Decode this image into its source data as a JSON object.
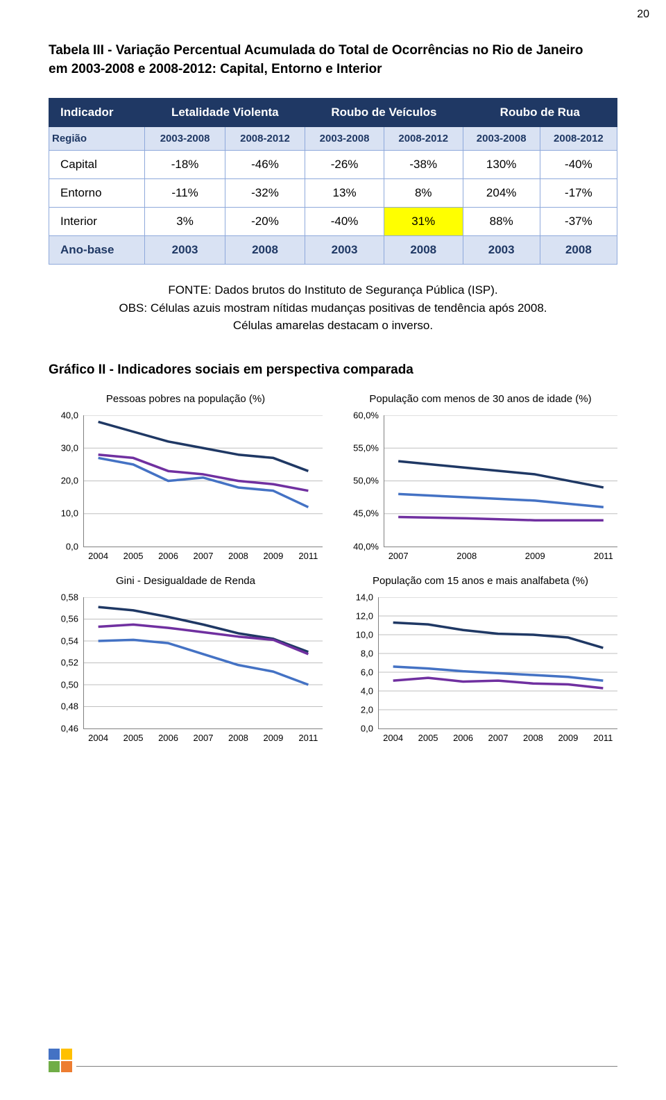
{
  "page_number": "20",
  "title_line1": "Tabela III - Variação Percentual Acumulada do Total de Ocorrências no Rio de Janeiro",
  "title_line2": "em 2003-2008 e 2008-2012: Capital, Entorno e Interior",
  "table": {
    "header_groups": [
      "Indicador",
      "Letalidade Violenta",
      "Roubo de Veículos",
      "Roubo de Rua"
    ],
    "region_label": "Região",
    "periods": [
      "2003-2008",
      "2008-2012",
      "2003-2008",
      "2008-2012",
      "2003-2008",
      "2008-2012"
    ],
    "rows": [
      {
        "label": "Capital",
        "cells": [
          "-18%",
          "-46%",
          "-26%",
          "-38%",
          "130%",
          "-40%"
        ],
        "hl": [
          false,
          false,
          false,
          false,
          false,
          false
        ]
      },
      {
        "label": "Entorno",
        "cells": [
          "-11%",
          "-32%",
          "13%",
          "8%",
          "204%",
          "-17%"
        ],
        "hl": [
          false,
          false,
          false,
          false,
          false,
          false
        ]
      },
      {
        "label": "Interior",
        "cells": [
          "3%",
          "-20%",
          "-40%",
          "31%",
          "88%",
          "-37%"
        ],
        "hl": [
          false,
          false,
          false,
          true,
          false,
          false
        ]
      }
    ],
    "base": {
      "label": "Ano-base",
      "cells": [
        "2003",
        "2008",
        "2003",
        "2008",
        "2003",
        "2008"
      ]
    }
  },
  "caption": {
    "l1": "FONTE: Dados brutos do Instituto de Segurança Pública (ISP).",
    "l2": "OBS: Células azuis mostram nítidas mudanças positivas de tendência após 2008.",
    "l3": "Células amarelas destacam o inverso."
  },
  "section": "Gráfico II - Indicadores sociais em perspectiva comparada",
  "colors": {
    "s1": "#1f3864",
    "s2": "#4472c4",
    "s3": "#7030a0",
    "grid": "#bfbfbf"
  },
  "charts": {
    "poverty": {
      "title": "Pessoas pobres na população (%)",
      "ylim": [
        0,
        40
      ],
      "yticks": [
        0,
        10,
        20,
        30,
        40
      ],
      "ytick_labels": [
        "0,0",
        "10,0",
        "20,0",
        "30,0",
        "40,0"
      ],
      "xlabels": [
        "2004",
        "2005",
        "2006",
        "2007",
        "2008",
        "2009",
        "2011"
      ],
      "series": [
        {
          "color": "s1",
          "v": [
            38,
            35,
            32,
            30,
            28,
            27,
            23
          ]
        },
        {
          "color": "s2",
          "v": [
            27,
            25,
            20,
            21,
            18,
            17,
            12
          ]
        },
        {
          "color": "s3",
          "v": [
            28,
            27,
            23,
            22,
            20,
            19,
            17
          ]
        }
      ]
    },
    "age30": {
      "title": "População com menos de 30 anos de idade (%)",
      "ylim": [
        40,
        60
      ],
      "yticks": [
        40,
        45,
        50,
        55,
        60
      ],
      "ytick_labels": [
        "40,0%",
        "45,0%",
        "50,0%",
        "55,0%",
        "60,0%"
      ],
      "xlabels": [
        "2007",
        "2008",
        "2009",
        "2011"
      ],
      "series": [
        {
          "color": "s1",
          "v": [
            53,
            52,
            51,
            49
          ]
        },
        {
          "color": "s2",
          "v": [
            48,
            47.5,
            47,
            46
          ]
        },
        {
          "color": "s3",
          "v": [
            44.5,
            44.3,
            44,
            44
          ]
        }
      ]
    },
    "gini": {
      "title": "Gini - Desigualdade de Renda",
      "ylim": [
        0.46,
        0.58
      ],
      "yticks": [
        0.46,
        0.48,
        0.5,
        0.52,
        0.54,
        0.56,
        0.58
      ],
      "ytick_labels": [
        "0,46",
        "0,48",
        "0,50",
        "0,52",
        "0,54",
        "0,56",
        "0,58"
      ],
      "xlabels": [
        "2004",
        "2005",
        "2006",
        "2007",
        "2008",
        "2009",
        "2011"
      ],
      "series": [
        {
          "color": "s1",
          "v": [
            0.571,
            0.568,
            0.562,
            0.555,
            0.547,
            0.542,
            0.53
          ]
        },
        {
          "color": "s2",
          "v": [
            0.54,
            0.541,
            0.538,
            0.528,
            0.518,
            0.512,
            0.5
          ]
        },
        {
          "color": "s3",
          "v": [
            0.553,
            0.555,
            0.552,
            0.548,
            0.544,
            0.541,
            0.528
          ]
        }
      ]
    },
    "illit": {
      "title": "População com 15 anos e mais analfabeta (%)",
      "ylim": [
        0,
        14
      ],
      "yticks": [
        0,
        2,
        4,
        6,
        8,
        10,
        12,
        14
      ],
      "ytick_labels": [
        "0,0",
        "2,0",
        "4,0",
        "6,0",
        "8,0",
        "10,0",
        "12,0",
        "14,0"
      ],
      "xlabels": [
        "2004",
        "2005",
        "2006",
        "2007",
        "2008",
        "2009",
        "2011"
      ],
      "series": [
        {
          "color": "s1",
          "v": [
            11.3,
            11.1,
            10.5,
            10.1,
            10.0,
            9.7,
            8.6
          ]
        },
        {
          "color": "s2",
          "v": [
            6.6,
            6.4,
            6.1,
            5.9,
            5.7,
            5.5,
            5.1
          ]
        },
        {
          "color": "s3",
          "v": [
            5.1,
            5.4,
            5.0,
            5.1,
            4.8,
            4.7,
            4.3
          ]
        }
      ]
    }
  }
}
